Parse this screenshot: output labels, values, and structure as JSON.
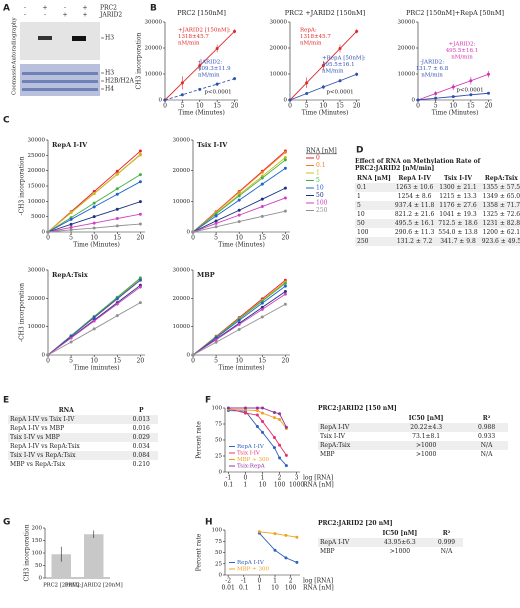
{
  "panels": [
    "A",
    "B",
    "C",
    "D",
    "E",
    "F",
    "G",
    "H"
  ],
  "gel": {
    "rows": [
      "PRC2",
      "JARID2"
    ],
    "columns": [
      [
        "-",
        "-"
      ],
      [
        "+",
        "-"
      ],
      [
        "-",
        "+"
      ],
      [
        "+",
        "+"
      ]
    ],
    "sections": [
      "Autoradiography",
      "Coomassie"
    ],
    "bands": [
      [
        "H3"
      ],
      [
        "H3",
        "H2B/H2A",
        "H4"
      ]
    ]
  },
  "chart_data": [
    {
      "type": "line",
      "title": "PRC2 [150nM]",
      "xlabel": "Time (Minutes)",
      "ylabel": "CH3 incorporation",
      "x": [
        0,
        5,
        10,
        15,
        20
      ],
      "xlim": [
        0,
        21
      ],
      "xticks": [
        0,
        5,
        10,
        15,
        20
      ],
      "ylim": [
        0,
        30000
      ],
      "yticks": [
        0,
        10000,
        20000,
        30000
      ],
      "series": [
        {
          "color": "#e02828",
          "values": [
            0,
            6600,
            13200,
            19800,
            26400
          ],
          "errors": [
            0,
            2500,
            2000,
            1500,
            800
          ]
        },
        {
          "color": "#3050b0",
          "dashed": true,
          "values": [
            0,
            2000,
            4100,
            6100,
            8200
          ],
          "errors": [
            0,
            600,
            500,
            700,
            600
          ]
        }
      ],
      "annotations": [
        {
          "color": "#e02828",
          "lines": [
            "+JARID2 [150nM]:",
            "1318±45.7",
            "nM/min"
          ]
        },
        {
          "color": "#3050b0",
          "lines": [
            "-JARID2:",
            "409.3±11.9",
            "nM/min"
          ]
        },
        {
          "color": "#222222",
          "lines": [
            "p<0.0001"
          ]
        }
      ]
    },
    {
      "type": "line",
      "title": "PRC2 +JARID2 [150nM]",
      "xlabel": "Time (Minutes)",
      "x": [
        0,
        5,
        10,
        15,
        20
      ],
      "xlim": [
        0,
        21
      ],
      "xticks": [
        0,
        5,
        10,
        15,
        20
      ],
      "ylim": [
        0,
        30000
      ],
      "yticks": [
        0,
        10000,
        20000,
        30000
      ],
      "series": [
        {
          "color": "#e02828",
          "values": [
            0,
            6600,
            13200,
            19800,
            26400
          ],
          "errors": [
            0,
            2000,
            1800,
            1500,
            800
          ]
        },
        {
          "color": "#3050b0",
          "values": [
            0,
            2500,
            5000,
            7400,
            9900
          ],
          "errors": [
            0,
            500,
            800,
            600,
            700
          ]
        }
      ],
      "annotations": [
        {
          "color": "#e02828",
          "lines": [
            "RepA:",
            "1318±45.7",
            "nM/min"
          ]
        },
        {
          "color": "#3050b0",
          "lines": [
            "+RepA [50nM]:",
            "495.5±16.1",
            "nM/min"
          ]
        },
        {
          "color": "#222222",
          "lines": [
            "p<0.0001"
          ]
        }
      ]
    },
    {
      "type": "line",
      "title": "PRC2 [150nM]+RepA [50nM]",
      "xlabel": "Time (Minutes)",
      "x": [
        0,
        5,
        10,
        15,
        20
      ],
      "xlim": [
        0,
        21
      ],
      "xticks": [
        0,
        5,
        10,
        15,
        20
      ],
      "ylim": [
        0,
        30000
      ],
      "yticks": [
        0,
        10000,
        20000,
        30000
      ],
      "series": [
        {
          "color": "#d030b0",
          "values": [
            0,
            2500,
            5000,
            7400,
            9900
          ],
          "errors": [
            0,
            900,
            1200,
            1500,
            1300
          ]
        },
        {
          "color": "#3050b0",
          "values": [
            0,
            700,
            1300,
            2000,
            2600
          ],
          "errors": [
            0,
            300,
            300,
            400,
            300
          ]
        }
      ],
      "annotations": [
        {
          "color": "#d030b0",
          "lines": [
            "+JARID2:",
            "495.5±16.1",
            "nM/min"
          ]
        },
        {
          "color": "#3050b0",
          "lines": [
            "-JARID2:",
            "131.7 ± 6.8",
            "nM/min"
          ]
        },
        {
          "color": "#222222",
          "lines": [
            "p<0.0001"
          ]
        }
      ]
    },
    {
      "type": "line",
      "title": "RepA I-IV",
      "xlabel": "Time (Minutes)",
      "ylabel": "-CH3 incorporation",
      "x": [
        0,
        5,
        10,
        15,
        20
      ],
      "xlim": [
        0,
        21
      ],
      "xticks": [
        0,
        5,
        10,
        15,
        20
      ],
      "ylim": [
        0,
        30000
      ],
      "yticks": [
        0,
        5000,
        10000,
        15000,
        20000,
        25000,
        30000
      ],
      "series": [
        {
          "name": "0",
          "color": "#e8202a",
          "values": [
            0,
            6600,
            13200,
            19800,
            26400
          ]
        },
        {
          "name": "0.1",
          "color": "#f08020",
          "values": [
            0,
            6300,
            12600,
            18900,
            25300
          ]
        },
        {
          "name": "1",
          "color": "#c8c020",
          "values": [
            0,
            6300,
            12500,
            18800,
            25100
          ]
        },
        {
          "name": "5",
          "color": "#40b040",
          "values": [
            0,
            4700,
            9400,
            14100,
            18700
          ]
        },
        {
          "name": "10",
          "color": "#2060d0",
          "values": [
            0,
            4100,
            8200,
            12300,
            16400
          ]
        },
        {
          "name": "50",
          "color": "#203080",
          "values": [
            0,
            2500,
            5000,
            7400,
            9900
          ]
        },
        {
          "name": "100",
          "color": "#d040c0",
          "values": [
            0,
            1500,
            2900,
            4400,
            5800
          ]
        },
        {
          "name": "250",
          "color": "#909090",
          "values": [
            0,
            700,
            1300,
            2000,
            2600
          ]
        }
      ]
    },
    {
      "type": "line",
      "title": "Tsix I-IV",
      "xlabel": "Time (Minutes)",
      "x": [
        0,
        5,
        10,
        15,
        20
      ],
      "xlim": [
        0,
        21
      ],
      "xticks": [
        0,
        5,
        10,
        15,
        20
      ],
      "ylim": [
        0,
        30000
      ],
      "yticks": [
        0,
        10000,
        20000,
        30000
      ],
      "legend": "right",
      "legend_title": "RNA [nM]",
      "series": [
        {
          "name": "0",
          "color": "#e8202a",
          "values": [
            0,
            6600,
            13200,
            19800,
            26400
          ]
        },
        {
          "name": "0.1",
          "color": "#f08020",
          "values": [
            0,
            6500,
            13000,
            19500,
            26000
          ]
        },
        {
          "name": "1",
          "color": "#c8c020",
          "values": [
            0,
            6100,
            12200,
            18200,
            24300
          ]
        },
        {
          "name": "5",
          "color": "#40b040",
          "values": [
            0,
            5900,
            11800,
            17600,
            23500
          ]
        },
        {
          "name": "10",
          "color": "#2060d0",
          "values": [
            0,
            5200,
            10400,
            15600,
            20800
          ]
        },
        {
          "name": "50",
          "color": "#203080",
          "values": [
            0,
            3600,
            7100,
            10700,
            14300
          ]
        },
        {
          "name": "100",
          "color": "#d040c0",
          "values": [
            0,
            2800,
            5500,
            8300,
            11100
          ]
        },
        {
          "name": "250",
          "color": "#909090",
          "values": [
            0,
            1700,
            3400,
            5100,
            6800
          ]
        }
      ]
    },
    {
      "type": "line",
      "title": "RepA:Tsix",
      "xlabel": "Time (minutes)",
      "ylabel": "-CH3 incorporation",
      "x": [
        0,
        5,
        10,
        15,
        20
      ],
      "xlim": [
        0,
        21
      ],
      "xticks": [
        0,
        5,
        10,
        15,
        20
      ],
      "ylim": [
        0,
        30000
      ],
      "yticks": [
        0,
        10000,
        20000,
        30000
      ],
      "series": [
        {
          "name": "0",
          "color": "#e8202a",
          "values": [
            0,
            6600,
            13200,
            19800,
            26400
          ]
        },
        {
          "name": "0.1",
          "color": "#f08020",
          "values": [
            0,
            6800,
            13600,
            20300,
            27100
          ]
        },
        {
          "name": "1",
          "color": "#c8c020",
          "values": [
            0,
            6700,
            13500,
            20200,
            27000
          ]
        },
        {
          "name": "5",
          "color": "#40b040",
          "values": [
            0,
            6800,
            13600,
            20400,
            27200
          ]
        },
        {
          "name": "10",
          "color": "#2060d0",
          "values": [
            0,
            6600,
            13300,
            19900,
            26500
          ]
        },
        {
          "name": "50",
          "color": "#203080",
          "values": [
            0,
            6200,
            12300,
            18500,
            24600
          ]
        },
        {
          "name": "100",
          "color": "#d040c0",
          "values": [
            0,
            6000,
            12000,
            18000,
            24000
          ]
        },
        {
          "name": "250",
          "color": "#909090",
          "values": [
            0,
            4600,
            9200,
            13900,
            18500
          ]
        }
      ]
    },
    {
      "type": "line",
      "title": "MBP",
      "xlabel": "Time (minutes)",
      "x": [
        0,
        5,
        10,
        15,
        20
      ],
      "xlim": [
        0,
        21
      ],
      "xticks": [
        0,
        5,
        10,
        15,
        20
      ],
      "ylim": [
        0,
        30000
      ],
      "yticks": [
        0,
        10000,
        20000,
        30000
      ],
      "series": [
        {
          "name": "0",
          "color": "#e8202a",
          "values": [
            0,
            6600,
            13200,
            19800,
            26400
          ]
        },
        {
          "name": "0.1",
          "color": "#f08020",
          "values": [
            0,
            6400,
            12900,
            19300,
            25800
          ]
        },
        {
          "name": "1",
          "color": "#c8c020",
          "values": [
            0,
            6400,
            12800,
            19200,
            25600
          ]
        },
        {
          "name": "5",
          "color": "#40b040",
          "values": [
            0,
            6300,
            12700,
            19000,
            25300
          ]
        },
        {
          "name": "10",
          "color": "#2060d0",
          "values": [
            0,
            6100,
            12200,
            18300,
            24300
          ]
        },
        {
          "name": "50",
          "color": "#203080",
          "values": [
            0,
            5600,
            11200,
            16800,
            22400
          ]
        },
        {
          "name": "100",
          "color": "#d040c0",
          "values": [
            0,
            5400,
            10800,
            16100,
            21500
          ]
        },
        {
          "name": "250",
          "color": "#909090",
          "values": [
            0,
            4500,
            9000,
            13400,
            17900
          ]
        }
      ]
    },
    {
      "type": "line",
      "xlabel": "log [RNA]",
      "x2label": "RNA [nM]",
      "ylabel": "Percent rate",
      "x": [
        -1,
        0,
        0.7,
        1,
        1.7,
        2,
        2.4
      ],
      "xlim": [
        -1.2,
        3.2
      ],
      "xticks": [
        -1,
        0,
        1,
        2,
        3
      ],
      "x2ticks": [
        {
          "value": -1,
          "label": "0.1"
        },
        {
          "value": 0,
          "label": "1"
        },
        {
          "value": 1,
          "label": "10"
        },
        {
          "value": 2,
          "label": "100"
        },
        {
          "value": 3,
          "label": "1000"
        }
      ],
      "ylim": [
        0,
        100
      ],
      "yticks": [
        0,
        25,
        50,
        75,
        100
      ],
      "legend": "lower left",
      "series": [
        {
          "name": "RepA I-IV",
          "color": "#3060c0",
          "values": [
            96,
            95,
            71,
            62,
            38,
            22,
            10
          ]
        },
        {
          "name": "Tsix I-IV",
          "color": "#e83070",
          "values": [
            99,
            92,
            89,
            79,
            54,
            42,
            26
          ]
        },
        {
          "name": "MBP ÷ 300",
          "color": "#f0a020",
          "values": [
            98,
            97,
            96,
            92,
            85,
            82,
            68
          ]
        },
        {
          "name": "Tsix:RepA",
          "color": "#9030a0",
          "values": [
            100,
            100,
            100,
            100,
            93,
            91,
            70
          ]
        }
      ]
    },
    {
      "type": "bar",
      "ylabel": "CH3 incorporation",
      "categories": [
        "PRC2 [20nM]",
        "PRC2:JARID2 [20nM]"
      ],
      "values": [
        95,
        175
      ],
      "errors": [
        30,
        15
      ],
      "color": "#c8c8c8",
      "ylim": [
        0,
        200
      ],
      "yticks": [
        0,
        50,
        100,
        150,
        200
      ]
    },
    {
      "type": "line",
      "xlabel": "log [RNA]",
      "x2label": "RNA [nM]",
      "ylabel": "Percent rate",
      "x": [
        0,
        1,
        1.7,
        2.4
      ],
      "xlim": [
        -2.2,
        2.6
      ],
      "xticks": [
        -2,
        -1,
        0,
        1,
        2
      ],
      "x2ticks": [
        {
          "value": -2,
          "label": "0.01"
        },
        {
          "value": -1,
          "label": "0.1"
        },
        {
          "value": 0,
          "label": "1"
        },
        {
          "value": 1,
          "label": "10"
        },
        {
          "value": 2,
          "label": "100"
        }
      ],
      "ylim": [
        0,
        100
      ],
      "yticks": [
        0,
        25,
        50,
        75,
        100
      ],
      "legend": "lower left",
      "series": [
        {
          "name": "RepA I-IV",
          "color": "#3060c0",
          "values": [
            93,
            55,
            38,
            28
          ]
        },
        {
          "name": "MBP ÷ 300",
          "color": "#f0a020",
          "values": [
            96,
            92,
            88,
            84
          ]
        }
      ]
    }
  ],
  "tables": [
    {
      "title": "Effect of RNA on Methylation Rate of PRC2:JARID2 [nM/min]",
      "header": [
        "RNA [nM]",
        "RepA I-IV",
        "Tsix I-IV",
        "RepA:Tsix",
        "MBP"
      ],
      "rows": [
        [
          "0.1",
          "1263 ± 10.6",
          "1300 ± 21.1",
          "1355 ± 57.5",
          "1288 ± 6.4"
        ],
        [
          "1",
          "1254 ± 8.6",
          "1215 ± 13.3",
          "1349 ± 65.0",
          "1278 ± 5.3"
        ],
        [
          "5",
          "937.4 ± 11.8",
          "1176 ± 27.6",
          "1358 ± 71.7",
          "1266 ± 8.9"
        ],
        [
          "10",
          "821.2 ± 21.6",
          "1041 ± 19.3",
          "1325 ± 72.6",
          "1217 ± 27.9"
        ],
        [
          "50",
          "495.5 ± 16.1",
          "712.5 ± 18.6",
          "1231 ± 82.8",
          "1122 ± 44.9"
        ],
        [
          "100",
          "290.6 ± 11.3",
          "554.0 ± 13.8",
          "1200 ± 62.1",
          "1075 ± 11.5"
        ],
        [
          "250",
          "131.2 ± 7.2",
          "341.7 ± 9.8",
          "923.6 ± 49.5",
          "896.3 ± 14.4"
        ]
      ]
    },
    {
      "header": [
        "RNA",
        "P"
      ],
      "rows": [
        [
          "RepA I-IV vs Tsix I-IV",
          "0.013"
        ],
        [
          "RepA I-IV vs MBP",
          "0.016"
        ],
        [
          "Tsix I-IV vs MBP",
          "0.029"
        ],
        [
          "RepA I-IV vs RepA:Tsix",
          "0.034"
        ],
        [
          "Tsix I-IV vs RepA:Tsix",
          "0.084"
        ],
        [
          "MBP vs RepA:Tsix",
          "0.210"
        ]
      ]
    },
    {
      "title": "PRC2:JARID2 [150 nM]",
      "header": [
        "IC50 [nM]",
        "R²"
      ],
      "rows": [
        [
          "RepA I-IV",
          "20.22±4.3",
          "0.988"
        ],
        [
          "Tsix I-IV",
          "73.1±8.1",
          "0.933"
        ],
        [
          "RepA:Tsix",
          ">1000",
          "N/A"
        ],
        [
          "MBP",
          ">1000",
          "N/A"
        ]
      ]
    },
    {
      "title": "PRC2:JARID2 [20 nM]",
      "header": [
        "IC50 [nM]",
        "R²"
      ],
      "rows": [
        [
          "RepA I-IV",
          "43.95±6.3",
          "0.999"
        ],
        [
          "MBP",
          ">1000",
          "N/A"
        ]
      ]
    }
  ]
}
